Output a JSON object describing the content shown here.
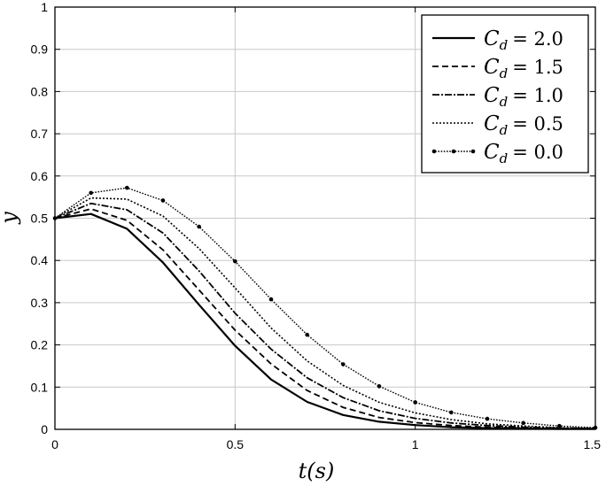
{
  "chart_data": {
    "type": "line",
    "title": "",
    "xlabel": "t(s)",
    "ylabel": "y",
    "xlim": [
      0,
      1.5
    ],
    "ylim": [
      0,
      1
    ],
    "xticks": [
      "0",
      "0.5",
      "1",
      "1.5"
    ],
    "yticks": [
      "0",
      "0.1",
      "0.2",
      "0.3",
      "0.4",
      "0.5",
      "0.6",
      "0.7",
      "0.8",
      "0.9",
      "1"
    ],
    "grid": true,
    "legend_position": "top-right",
    "x": [
      0,
      0.1,
      0.2,
      0.3,
      0.4,
      0.5,
      0.6,
      0.7,
      0.8,
      0.9,
      1.0,
      1.1,
      1.2,
      1.3,
      1.4,
      1.5
    ],
    "series": [
      {
        "name": "C_d = 2.0",
        "legend_var": "C",
        "legend_sub": "d",
        "legend_value": "= 2.0",
        "style": "solid",
        "values": [
          0.5,
          0.51,
          0.475,
          0.395,
          0.295,
          0.198,
          0.118,
          0.065,
          0.034,
          0.018,
          0.01,
          0.005,
          0.003,
          0.002,
          0.001,
          0.001
        ]
      },
      {
        "name": "C_d = 1.5",
        "legend_var": "C",
        "legend_sub": "d",
        "legend_value": "= 1.5",
        "style": "dashed",
        "values": [
          0.5,
          0.522,
          0.495,
          0.425,
          0.33,
          0.235,
          0.155,
          0.092,
          0.052,
          0.028,
          0.016,
          0.009,
          0.005,
          0.003,
          0.002,
          0.001
        ]
      },
      {
        "name": "C_d = 1.0",
        "legend_var": "C",
        "legend_sub": "d",
        "legend_value": "= 1.0",
        "style": "dashdot",
        "values": [
          0.5,
          0.535,
          0.52,
          0.465,
          0.375,
          0.275,
          0.19,
          0.122,
          0.075,
          0.044,
          0.026,
          0.015,
          0.009,
          0.005,
          0.003,
          0.002
        ]
      },
      {
        "name": "C_d = 0.5",
        "legend_var": "C",
        "legend_sub": "d",
        "legend_value": "= 0.5",
        "style": "dotted",
        "values": [
          0.5,
          0.548,
          0.545,
          0.505,
          0.428,
          0.335,
          0.24,
          0.162,
          0.104,
          0.064,
          0.039,
          0.023,
          0.013,
          0.008,
          0.004,
          0.002
        ]
      },
      {
        "name": "C_d = 0.0",
        "legend_var": "C",
        "legend_sub": "d",
        "legend_value": "= 0.0",
        "style": "dotted-marker",
        "values": [
          0.5,
          0.56,
          0.572,
          0.542,
          0.48,
          0.398,
          0.308,
          0.224,
          0.154,
          0.102,
          0.064,
          0.04,
          0.025,
          0.015,
          0.008,
          0.004
        ]
      }
    ]
  }
}
